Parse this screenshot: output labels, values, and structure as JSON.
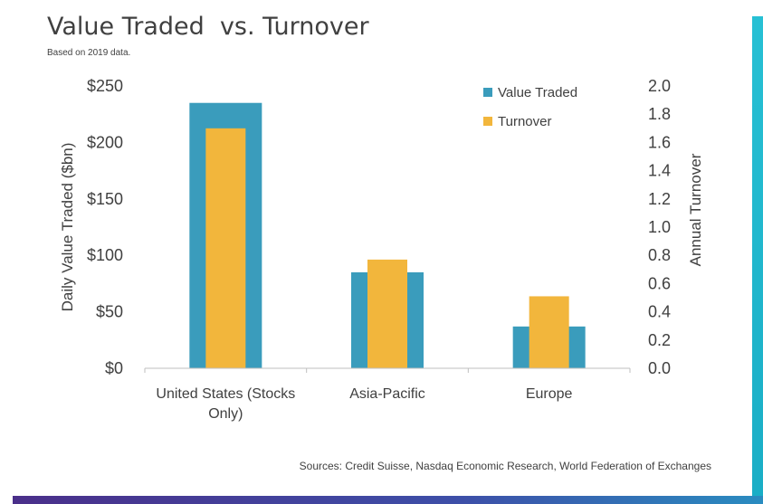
{
  "chart_data": {
    "type": "bar",
    "title": "Value Traded  vs. Turnover",
    "subtitle": "Based on 2019 data.",
    "categories": [
      "United States (Stocks Only)",
      "Asia-Pacific",
      "Europe"
    ],
    "category_lines": [
      [
        "United States (Stocks",
        "Only)"
      ],
      [
        "Asia-Pacific"
      ],
      [
        "Europe"
      ]
    ],
    "series": [
      {
        "name": "Value Traded",
        "axis": "left",
        "color": "#3a9cbc",
        "values": [
          235,
          85,
          37
        ]
      },
      {
        "name": "Turnover",
        "axis": "right",
        "color": "#f2b63c",
        "values": [
          1.7,
          0.77,
          0.51
        ]
      }
    ],
    "ylabel": "Daily Value Traded ($bn)",
    "y2label": "Annual Turnover",
    "ylim": [
      0,
      250
    ],
    "y2lim": [
      0,
      2.0
    ],
    "yticks": [
      0,
      50,
      100,
      150,
      200,
      250
    ],
    "ytick_labels": [
      "$0",
      "$50",
      "$100",
      "$150",
      "$200",
      "$250"
    ],
    "y2ticks": [
      0,
      0.2,
      0.4,
      0.6,
      0.8,
      1.0,
      1.2,
      1.4,
      1.6,
      1.8,
      2.0
    ],
    "y2tick_labels": [
      "0.0",
      "0.2",
      "0.4",
      "0.6",
      "0.8",
      "1.0",
      "1.2",
      "1.4",
      "1.6",
      "1.8",
      "2.0"
    ],
    "legend_position": "top-right",
    "grid": false,
    "source": "Sources: Credit Suisse, Nasdaq Economic Research, World Federation of Exchanges"
  }
}
